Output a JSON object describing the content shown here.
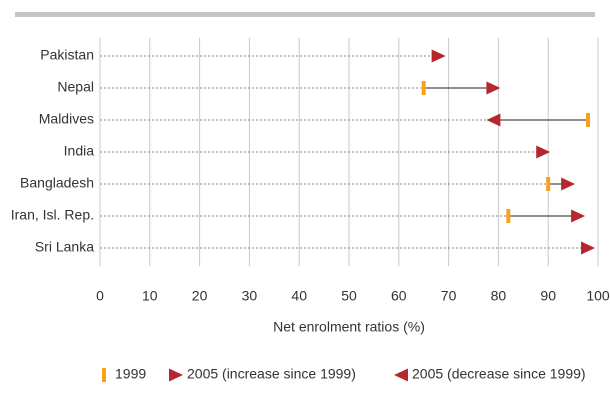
{
  "chart_data": {
    "type": "arrow",
    "categories": [
      "Pakistan",
      "Nepal",
      "Maldives",
      "India",
      "Bangladesh",
      "Iran, Isl. Rep.",
      "Sri Lanka"
    ],
    "series": [
      {
        "name": "1999",
        "color": "#f7a21b",
        "marker": "bar",
        "values": [
          null,
          65,
          98,
          null,
          90,
          82,
          null
        ]
      },
      {
        "name": "2005 (increase since 1999)",
        "color": "#b5272d",
        "marker": "triangle-right",
        "values": [
          68,
          79,
          null,
          89,
          94,
          96,
          98
        ]
      },
      {
        "name": "2005 (decrease since 1999)",
        "color": "#b5272d",
        "marker": "triangle-left",
        "values": [
          null,
          null,
          79,
          null,
          null,
          null,
          null
        ]
      }
    ],
    "x_label": "Net enrolment ratios (%)",
    "xlim": [
      0,
      100
    ],
    "xticks": [
      0,
      10,
      20,
      30,
      40,
      50,
      60,
      70,
      80,
      90,
      100
    ],
    "grid": true,
    "legend": "bottom"
  }
}
